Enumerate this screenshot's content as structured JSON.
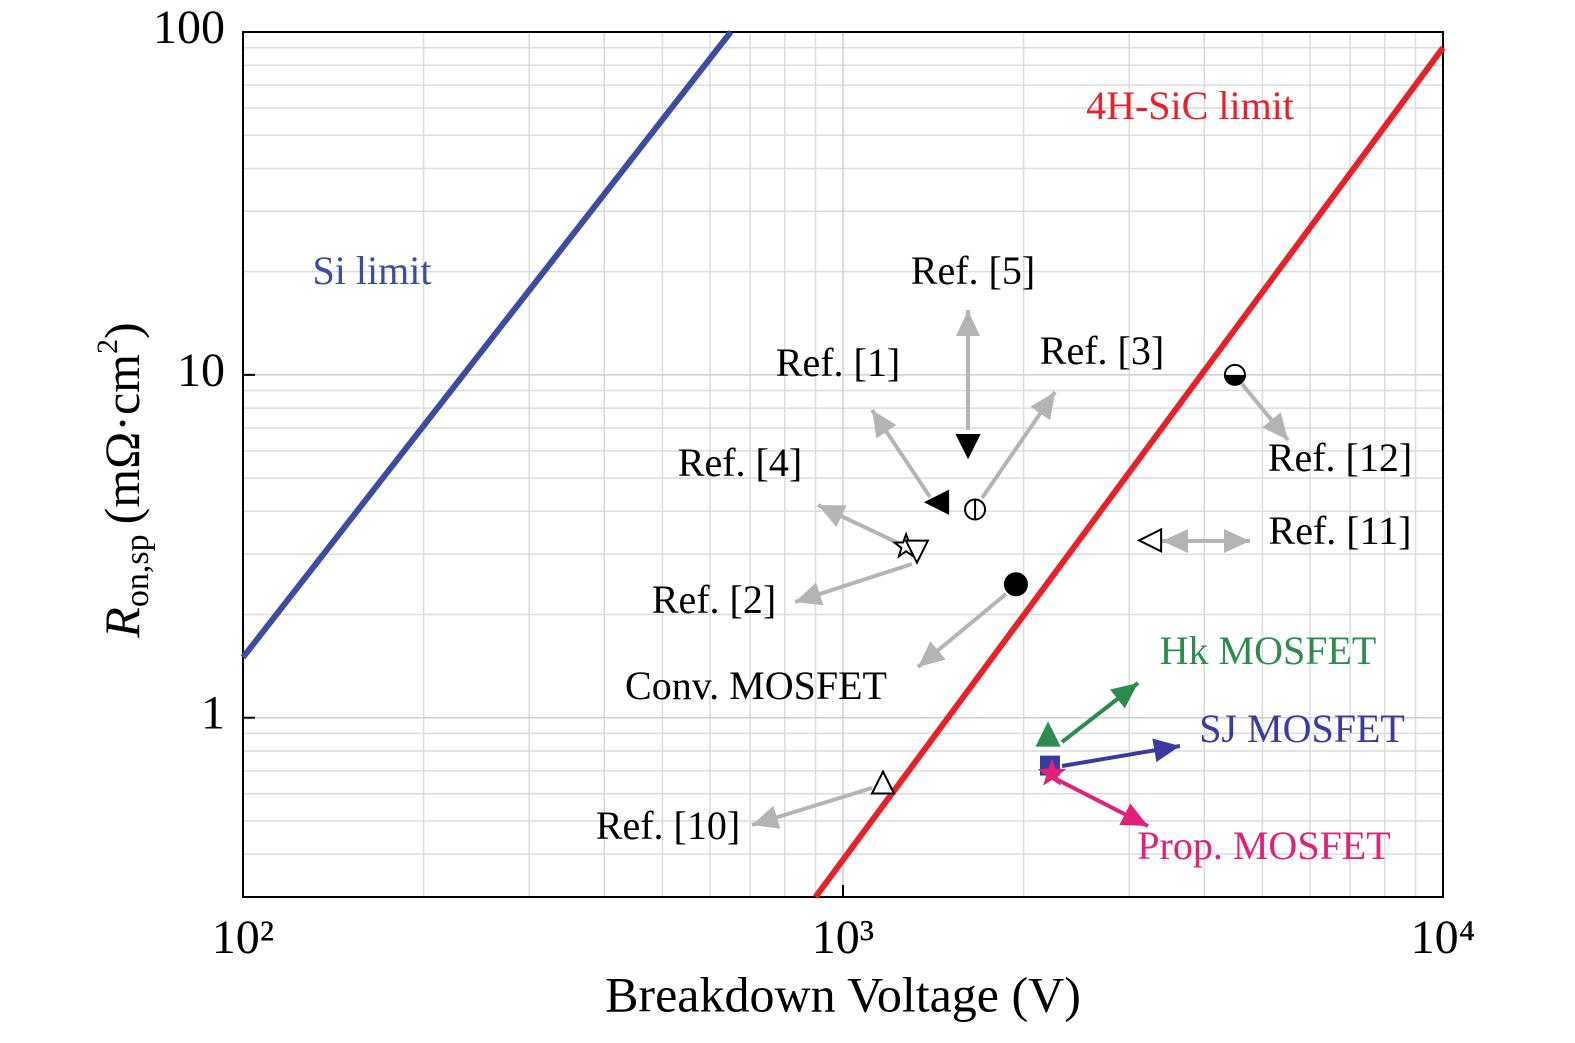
{
  "chart_data": {
    "type": "scatter",
    "log_x": true,
    "log_y": true,
    "grid": true,
    "xlabel": "Breakdown Voltage (V)",
    "ylabel": {
      "main": "R",
      "sub": "on,sp",
      "unit": "(mΩ·cm",
      "sup": "2",
      "close": ")"
    },
    "xlim": [
      100,
      10000
    ],
    "ylim": [
      0.3,
      100
    ],
    "xticks": [
      {
        "value": 100,
        "label": "10²"
      },
      {
        "value": 1000,
        "label": "10³"
      },
      {
        "value": 10000,
        "label": "10⁴"
      }
    ],
    "yticks": [
      1,
      10,
      100
    ],
    "minor_xticks": [
      200,
      300,
      400,
      500,
      600,
      700,
      800,
      900,
      2000,
      3000,
      4000,
      5000,
      6000,
      7000,
      8000,
      9000
    ],
    "minor_yticks": [
      0.4,
      0.5,
      0.6,
      0.7,
      0.8,
      0.9,
      2,
      3,
      4,
      5,
      6,
      7,
      8,
      9,
      20,
      30,
      40,
      50,
      60,
      70,
      80,
      90
    ],
    "series": [
      {
        "name": "Si limit",
        "kind": "line",
        "color": "#3d4c9e",
        "x": [
          100,
          650
        ],
        "y": [
          1.5,
          100
        ]
      },
      {
        "name": "4H-SiC limit",
        "kind": "line",
        "color": "#e8202a",
        "x": [
          900,
          10000
        ],
        "y": [
          0.3,
          90
        ]
      },
      {
        "name": "Ref. [5]",
        "kind": "marker",
        "marker": "triangle-down",
        "color": "#000000",
        "x": [
          1616
        ],
        "y": [
          6.2
        ]
      },
      {
        "name": "Ref. [1]",
        "kind": "marker",
        "marker": "triangle-left",
        "color": "#000000",
        "x": [
          1435
        ],
        "y": [
          4.25
        ]
      },
      {
        "name": "Ref. [3]",
        "kind": "marker",
        "marker": "circle-half-left",
        "color": "#000000",
        "x": [
          1660
        ],
        "y": [
          4.05
        ]
      },
      {
        "name": "Ref. [4]",
        "kind": "marker",
        "marker": "star-open",
        "color": "#000000",
        "x": [
          1274
        ],
        "y": [
          3.16
        ]
      },
      {
        "name": "Ref. [2]",
        "kind": "marker",
        "marker": "triangle-down-open",
        "color": "#000000",
        "x": [
          1328
        ],
        "y": [
          3.05
        ]
      },
      {
        "name": "Conv. MOSFET",
        "kind": "marker",
        "marker": "circle",
        "color": "#000000",
        "x": [
          1942
        ],
        "y": [
          2.45
        ]
      },
      {
        "name": "Ref. [12]",
        "kind": "marker",
        "marker": "circle-half-bottom",
        "color": "#000000",
        "x": [
          4500
        ],
        "y": [
          10
        ]
      },
      {
        "name": "Ref. [11]",
        "kind": "marker",
        "marker": "triangle-left-open",
        "color": "#000000",
        "x": [
          3250
        ],
        "y": [
          3.29
        ]
      },
      {
        "name": "Ref. [10]",
        "kind": "marker",
        "marker": "triangle-up-open",
        "color": "#000000",
        "x": [
          1166
        ],
        "y": [
          0.647
        ]
      },
      {
        "name": "Hk MOSFET",
        "kind": "marker",
        "marker": "triangle-up",
        "color": "#2e8b4f",
        "x": [
          2197
        ],
        "y": [
          0.893
        ]
      },
      {
        "name": "SJ MOSFET",
        "kind": "marker",
        "marker": "square",
        "color": "#3a3aa0",
        "x": [
          2213
        ],
        "y": [
          0.725
        ]
      },
      {
        "name": "Prop. MOSFET",
        "kind": "marker",
        "marker": "star",
        "color": "#e0207a",
        "x": [
          2230
        ],
        "y": [
          0.687
        ]
      }
    ]
  }
}
